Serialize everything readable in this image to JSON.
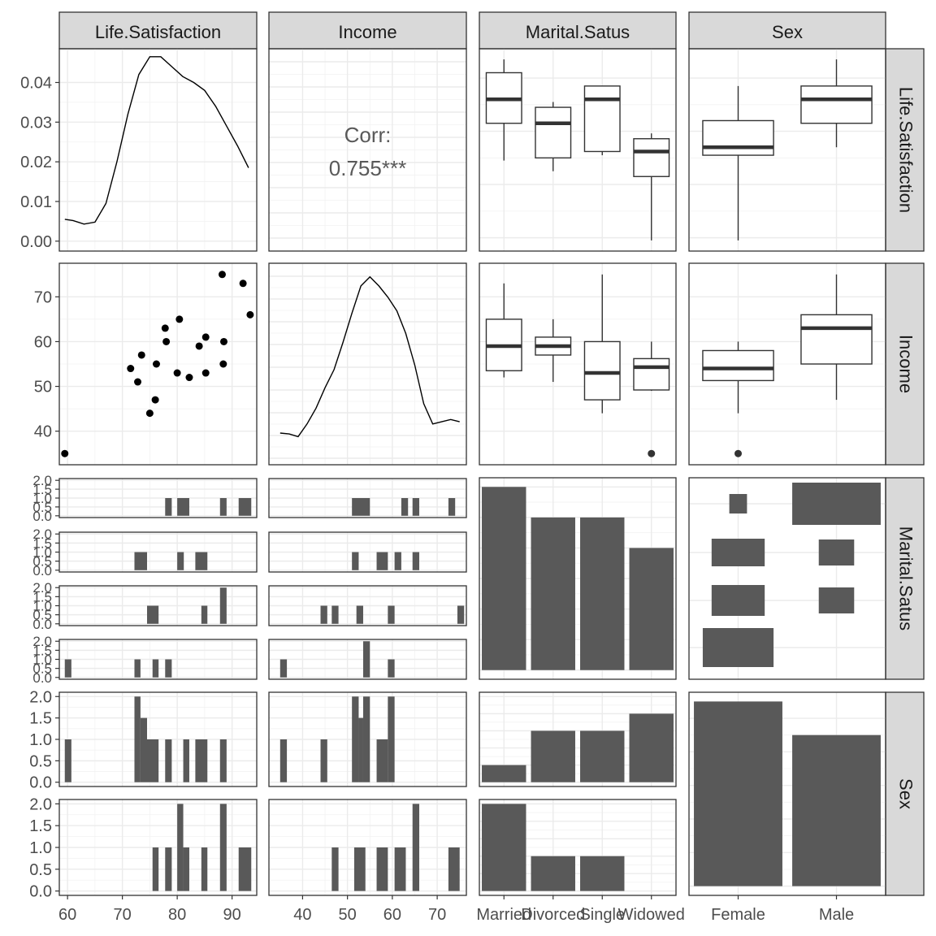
{
  "chart_data": {
    "type": "pairs",
    "variables": [
      "Life.Satisfaction",
      "Income",
      "Marital.Satus",
      "Sex"
    ],
    "ticks": {
      "Life.Satisfaction": [
        60,
        70,
        80,
        90
      ],
      "Income": [
        40,
        50,
        60,
        70
      ],
      "density_y": [
        "0.00",
        "0.01",
        "0.02",
        "0.03",
        "0.04"
      ],
      "count_y": [
        "0.0",
        "0.5",
        "1.0",
        "1.5",
        "2.0"
      ]
    },
    "levels": {
      "Marital.Satus": [
        "Married",
        "Divorced",
        "Single",
        "Widowed"
      ],
      "Sex": [
        "Female",
        "Male"
      ]
    },
    "correlation": {
      "label": "Corr:",
      "value": "0.755***"
    },
    "density_life_satisfaction": {
      "x": [
        59.5,
        61,
        63,
        65,
        67,
        69,
        71,
        73,
        75,
        77,
        79,
        81,
        83,
        85,
        87,
        89,
        91,
        93
      ],
      "y": [
        0.0055,
        0.0052,
        0.0043,
        0.0048,
        0.0095,
        0.02,
        0.032,
        0.042,
        0.0465,
        0.0465,
        0.044,
        0.0415,
        0.04,
        0.038,
        0.034,
        0.029,
        0.024,
        0.0185
      ]
    },
    "density_income": {
      "x": [
        35,
        37,
        39,
        41,
        43,
        45,
        47,
        49,
        51,
        53,
        55,
        57,
        59,
        61,
        63,
        65,
        67,
        69,
        71,
        73,
        75
      ],
      "y": [
        0.007,
        0.0068,
        0.0062,
        0.009,
        0.0125,
        0.017,
        0.021,
        0.027,
        0.0335,
        0.0395,
        0.0415,
        0.0395,
        0.037,
        0.034,
        0.029,
        0.022,
        0.0135,
        0.009,
        0.0095,
        0.01,
        0.0095
      ]
    },
    "scatter": {
      "x": [
        59.5,
        71.5,
        72.8,
        73.5,
        75,
        76,
        76.2,
        77.8,
        78,
        80,
        80.4,
        82.2,
        84,
        85.2,
        85.2,
        88.2,
        88.5,
        88.4,
        92,
        93.3
      ],
      "y": [
        35,
        54,
        51,
        57,
        44,
        47,
        55,
        63,
        60,
        53,
        65,
        52,
        59,
        61,
        53,
        75,
        60,
        55,
        73,
        66
      ]
    },
    "box_life_by_marital": [
      {
        "level": "Married",
        "min": 74.5,
        "q1": 81.5,
        "median": 86,
        "q3": 91,
        "max": 93.5
      },
      {
        "level": "Divorced",
        "min": 72.5,
        "q1": 75,
        "median": 81.5,
        "q3": 84.5,
        "max": 85.5
      },
      {
        "level": "Single",
        "min": 75.5,
        "q1": 76.2,
        "median": 86,
        "q3": 88.5,
        "max": 88.5
      },
      {
        "level": "Widowed",
        "min": 59.5,
        "q1": 71.5,
        "median": 76.2,
        "q3": 78.6,
        "max": 79.6
      }
    ],
    "box_life_by_sex": [
      {
        "level": "Female",
        "min": 59.5,
        "q1": 75.5,
        "median": 77,
        "q3": 82,
        "max": 88.5
      },
      {
        "level": "Male",
        "min": 77,
        "q1": 81.5,
        "median": 86,
        "q3": 88.5,
        "max": 93.5
      }
    ],
    "box_income_by_marital": [
      {
        "level": "Married",
        "min": 52,
        "q1": 53.5,
        "median": 59,
        "q3": 65,
        "max": 73,
        "outliers": []
      },
      {
        "level": "Divorced",
        "min": 51,
        "q1": 57,
        "median": 59,
        "q3": 61,
        "max": 65,
        "outliers": []
      },
      {
        "level": "Single",
        "min": 44,
        "q1": 47,
        "median": 53,
        "q3": 60,
        "max": 75,
        "outliers": []
      },
      {
        "level": "Widowed",
        "min": 49,
        "q1": 49.2,
        "median": 54.3,
        "q3": 56.2,
        "max": 60,
        "outliers": [
          35
        ]
      }
    ],
    "box_income_by_sex": [
      {
        "level": "Female",
        "min": 44,
        "q1": 51.3,
        "median": 54,
        "q3": 58,
        "max": 60,
        "outliers": [
          35
        ]
      },
      {
        "level": "Male",
        "min": 47,
        "q1": 55,
        "median": 63,
        "q3": 66,
        "max": 75,
        "outliers": []
      }
    ],
    "bar_marital_counts": [
      {
        "level": "Married",
        "count": 6
      },
      {
        "level": "Divorced",
        "count": 5
      },
      {
        "level": "Single",
        "count": 5
      },
      {
        "level": "Widowed",
        "count": 4
      }
    ],
    "bar_sex_counts": [
      {
        "level": "Female",
        "count": 11
      },
      {
        "level": "Male",
        "count": 9
      }
    ],
    "bar_sex_by_marital": [
      {
        "sex": "Female",
        "counts": [
          1,
          3,
          3,
          4
        ]
      },
      {
        "sex": "Male",
        "counts": [
          5,
          2,
          2,
          0
        ]
      }
    ],
    "mosaic_marital_by_sex": [
      {
        "marital": "Married",
        "female": 1,
        "male": 5
      },
      {
        "marital": "Divorced",
        "female": 3,
        "male": 2
      },
      {
        "marital": "Single",
        "female": 3,
        "male": 2
      },
      {
        "marital": "Widowed",
        "female": 4,
        "male": 0
      }
    ],
    "hist_life_by_marital": [
      {
        "level": "Married",
        "bins": [
          {
            "x0": 77.8,
            "x1": 79,
            "c": 1
          },
          {
            "x0": 80,
            "x1": 82.2,
            "c": 1
          },
          {
            "x0": 87.8,
            "x1": 89,
            "c": 1
          },
          {
            "x0": 91.2,
            "x1": 93.5,
            "c": 1
          }
        ]
      },
      {
        "level": "Divorced",
        "bins": [
          {
            "x0": 72.2,
            "x1": 74.5,
            "c": 1
          },
          {
            "x0": 80,
            "x1": 81.2,
            "c": 1
          },
          {
            "x0": 83.3,
            "x1": 85.5,
            "c": 1
          }
        ]
      },
      {
        "level": "Single",
        "bins": [
          {
            "x0": 74.5,
            "x1": 76.6,
            "c": 1
          },
          {
            "x0": 84.4,
            "x1": 85.5,
            "c": 1
          },
          {
            "x0": 87.8,
            "x1": 89,
            "c": 2
          }
        ]
      },
      {
        "level": "Widowed",
        "bins": [
          {
            "x0": 59.5,
            "x1": 60.7,
            "c": 1
          },
          {
            "x0": 72.2,
            "x1": 73.3,
            "c": 1
          },
          {
            "x0": 75.5,
            "x1": 76.6,
            "c": 1
          },
          {
            "x0": 77.8,
            "x1": 79,
            "c": 1
          }
        ]
      }
    ],
    "hist_income_by_marital": [
      {
        "level": "Married",
        "bins": [
          {
            "x0": 51,
            "x1": 55,
            "c": 1
          },
          {
            "x0": 62,
            "x1": 63.5,
            "c": 1
          },
          {
            "x0": 64.5,
            "x1": 66,
            "c": 1
          },
          {
            "x0": 72.5,
            "x1": 74,
            "c": 1
          }
        ]
      },
      {
        "level": "Divorced",
        "bins": [
          {
            "x0": 51,
            "x1": 52.5,
            "c": 1
          },
          {
            "x0": 56.5,
            "x1": 59,
            "c": 1
          },
          {
            "x0": 60.5,
            "x1": 62,
            "c": 1
          },
          {
            "x0": 64.5,
            "x1": 66,
            "c": 1
          }
        ]
      },
      {
        "level": "Single",
        "bins": [
          {
            "x0": 44,
            "x1": 45.5,
            "c": 1
          },
          {
            "x0": 46.5,
            "x1": 48,
            "c": 1
          },
          {
            "x0": 52,
            "x1": 53.5,
            "c": 1
          },
          {
            "x0": 59,
            "x1": 60.5,
            "c": 1
          },
          {
            "x0": 74.5,
            "x1": 76,
            "c": 1
          }
        ]
      },
      {
        "level": "Widowed",
        "bins": [
          {
            "x0": 35,
            "x1": 36.5,
            "c": 1
          },
          {
            "x0": 53.5,
            "x1": 55,
            "c": 2
          },
          {
            "x0": 59,
            "x1": 60.5,
            "c": 1
          }
        ]
      }
    ],
    "hist_life_by_sex": [
      {
        "level": "Female",
        "bins": [
          {
            "x0": 59.5,
            "x1": 60.7,
            "c": 1
          },
          {
            "x0": 72.2,
            "x1": 73.3,
            "c": 2
          },
          {
            "x0": 73.3,
            "x1": 74.5,
            "c": 1.5
          },
          {
            "x0": 74.5,
            "x1": 76.6,
            "c": 1
          },
          {
            "x0": 77.8,
            "x1": 79,
            "c": 1
          },
          {
            "x0": 81.1,
            "x1": 82.2,
            "c": 1
          },
          {
            "x0": 83.3,
            "x1": 85.5,
            "c": 1
          },
          {
            "x0": 87.8,
            "x1": 89,
            "c": 1
          }
        ]
      },
      {
        "level": "Male",
        "bins": [
          {
            "x0": 75.5,
            "x1": 76.6,
            "c": 1
          },
          {
            "x0": 77.8,
            "x1": 79,
            "c": 1
          },
          {
            "x0": 80,
            "x1": 81.1,
            "c": 2
          },
          {
            "x0": 81.1,
            "x1": 82.2,
            "c": 1
          },
          {
            "x0": 84.4,
            "x1": 85.5,
            "c": 1
          },
          {
            "x0": 87.8,
            "x1": 89,
            "c": 2
          },
          {
            "x0": 91.2,
            "x1": 93.5,
            "c": 1
          }
        ]
      }
    ],
    "hist_income_by_sex": [
      {
        "level": "Female",
        "bins": [
          {
            "x0": 35,
            "x1": 36.5,
            "c": 1
          },
          {
            "x0": 44,
            "x1": 45.5,
            "c": 1
          },
          {
            "x0": 51,
            "x1": 52.5,
            "c": 2
          },
          {
            "x0": 52.5,
            "x1": 53.5,
            "c": 1.5
          },
          {
            "x0": 53.5,
            "x1": 55,
            "c": 2
          },
          {
            "x0": 56.5,
            "x1": 59,
            "c": 1
          },
          {
            "x0": 59,
            "x1": 60.5,
            "c": 2
          }
        ]
      },
      {
        "level": "Male",
        "bins": [
          {
            "x0": 46.5,
            "x1": 48,
            "c": 1
          },
          {
            "x0": 51.5,
            "x1": 54,
            "c": 1
          },
          {
            "x0": 56.5,
            "x1": 59,
            "c": 1
          },
          {
            "x0": 60.5,
            "x1": 63,
            "c": 1
          },
          {
            "x0": 64.5,
            "x1": 66,
            "c": 2
          },
          {
            "x0": 72.5,
            "x1": 75,
            "c": 1
          }
        ]
      }
    ],
    "grid": true,
    "theme": "bw"
  }
}
